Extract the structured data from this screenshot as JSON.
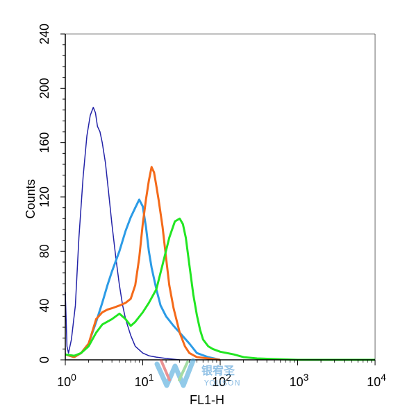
{
  "chart_data": {
    "type": "line",
    "title": "",
    "xlabel": "FL1-H",
    "ylabel": "Counts",
    "x_scale": "log",
    "xlim": [
      1,
      10000
    ],
    "ylim": [
      0,
      240
    ],
    "x_ticks": [
      {
        "value": 1,
        "base": "10",
        "exp": "0"
      },
      {
        "value": 10,
        "base": "10",
        "exp": "1"
      },
      {
        "value": 100,
        "base": "10",
        "exp": "2"
      },
      {
        "value": 1000,
        "base": "10",
        "exp": "3"
      },
      {
        "value": 10000,
        "base": "10",
        "exp": "4"
      }
    ],
    "y_ticks": [
      0,
      40,
      80,
      120,
      160,
      200,
      240
    ],
    "grid": false,
    "legend": "none",
    "series": [
      {
        "color": "#2323a8",
        "x": [
          1,
          1.05,
          1.1,
          1.2,
          1.35,
          1.5,
          1.7,
          1.9,
          2.1,
          2.3,
          2.45,
          2.6,
          2.8,
          3.0,
          3.3,
          3.6,
          4.0,
          4.5,
          5.0,
          5.5,
          6.0,
          7.0,
          8.0,
          10,
          12,
          15,
          20,
          30
        ],
        "y": [
          50,
          10,
          5,
          15,
          40,
          90,
          135,
          165,
          180,
          186,
          182,
          172,
          168,
          160,
          145,
          125,
          100,
          75,
          55,
          40,
          30,
          18,
          10,
          5,
          3,
          2,
          1,
          0
        ]
      },
      {
        "color": "#2b9be6",
        "x": [
          1,
          1.3,
          1.6,
          2.0,
          2.5,
          3.0,
          3.5,
          4.0,
          5.0,
          6.0,
          7.0,
          8.0,
          9.0,
          10,
          11,
          12,
          13,
          15,
          17,
          20,
          25,
          30,
          40,
          50,
          70,
          100
        ],
        "y": [
          4,
          2,
          5,
          12,
          28,
          42,
          55,
          65,
          80,
          95,
          105,
          112,
          118,
          113,
          98,
          80,
          68,
          52,
          40,
          32,
          25,
          20,
          12,
          5,
          2,
          0
        ]
      },
      {
        "color": "#f46a1a",
        "x": [
          1,
          1.3,
          1.6,
          2.0,
          2.5,
          3.0,
          3.5,
          4.0,
          5.0,
          6.0,
          7.0,
          8.0,
          9.0,
          10,
          11,
          12,
          13,
          14,
          15,
          16,
          18,
          20,
          22,
          25,
          30,
          35,
          40,
          50,
          70,
          100
        ],
        "y": [
          4,
          2,
          5,
          12,
          30,
          35,
          37,
          38,
          40,
          42,
          45,
          55,
          75,
          100,
          118,
          132,
          142,
          138,
          128,
          118,
          98,
          75,
          55,
          38,
          20,
          10,
          5,
          2,
          1,
          0
        ]
      },
      {
        "color": "#22e622",
        "x": [
          1,
          1.3,
          1.6,
          2.0,
          2.5,
          3.0,
          4.0,
          5.0,
          6.0,
          7.0,
          8.0,
          10,
          12,
          15,
          18,
          22,
          26,
          30,
          33,
          36,
          40,
          45,
          50,
          55,
          60,
          70,
          80,
          100,
          150,
          200,
          300,
          1000,
          10000
        ],
        "y": [
          4,
          3,
          5,
          10,
          20,
          26,
          30,
          34,
          30,
          25,
          28,
          35,
          42,
          52,
          70,
          90,
          102,
          104,
          100,
          90,
          70,
          48,
          33,
          22,
          15,
          10,
          8,
          6,
          4,
          2,
          1,
          0,
          0
        ]
      }
    ]
  },
  "watermark": {
    "line1": "银宥圣",
    "line2": "YOUSON"
  }
}
